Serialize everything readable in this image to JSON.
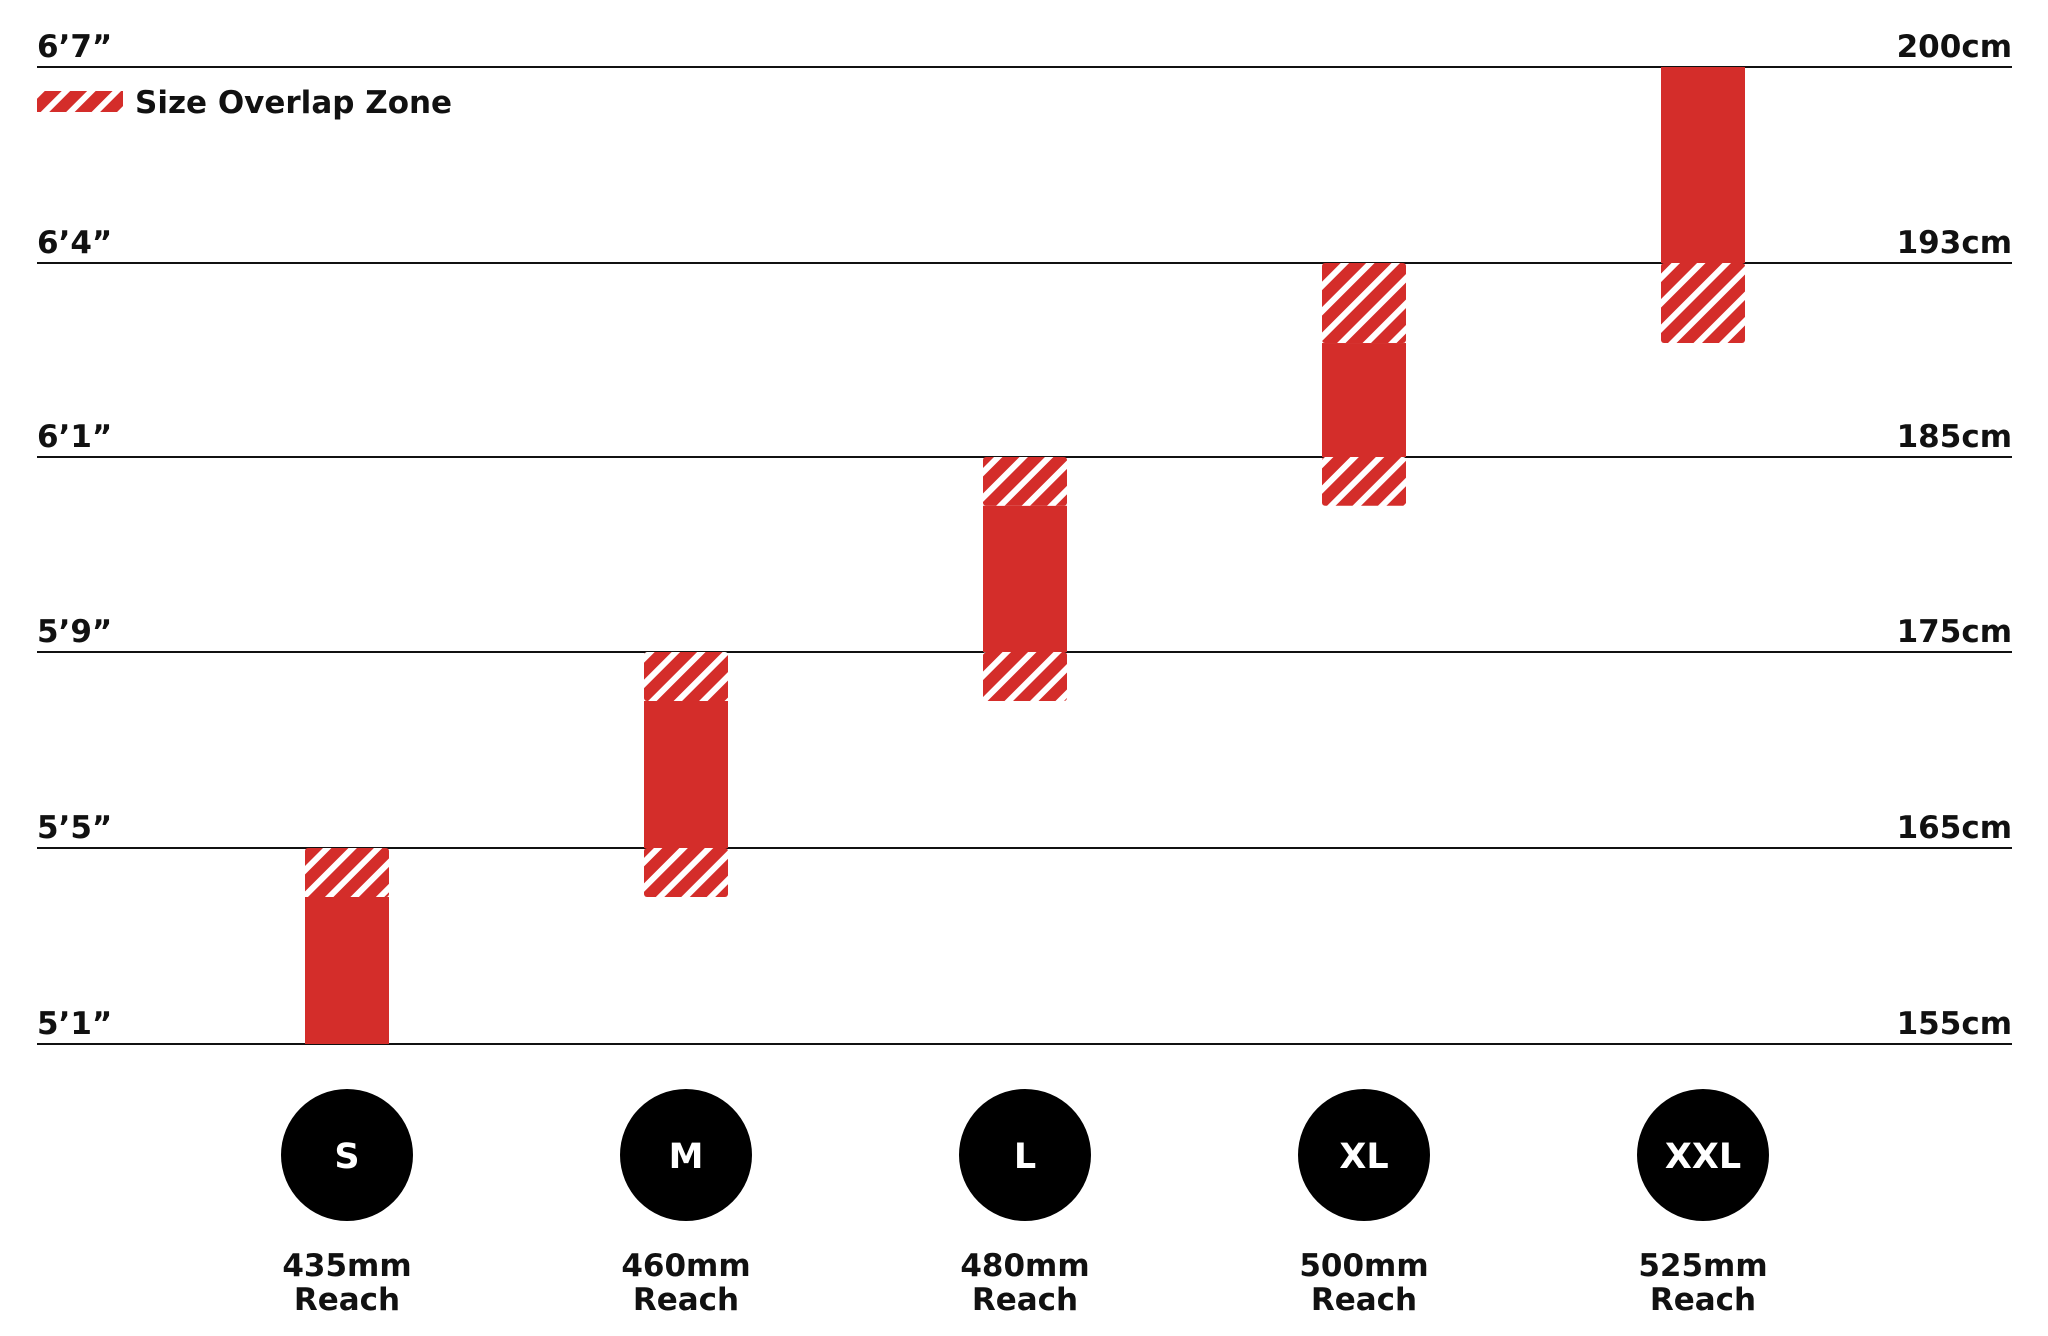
{
  "chart_data": {
    "type": "range-bar",
    "title": "",
    "ylabel_left": "",
    "ylabel_right": "",
    "y_ticks": [
      {
        "cm": 155,
        "label_left": "5’1”",
        "label_right": "155cm"
      },
      {
        "cm": 165,
        "label_left": "5’5”",
        "label_right": "165cm"
      },
      {
        "cm": 175,
        "label_left": "5’9”",
        "label_right": "175cm"
      },
      {
        "cm": 185,
        "label_left": "6’1”",
        "label_right": "185cm"
      },
      {
        "cm": 193,
        "label_left": "6’4”",
        "label_right": "193cm"
      },
      {
        "cm": 200,
        "label_left": "6’7”",
        "label_right": "200cm"
      }
    ],
    "legend": {
      "label": "Size Overlap Zone",
      "position": "top-left"
    },
    "colors": {
      "bar": "#d42d2a",
      "stripe": "#ffffff",
      "grid": "#111111",
      "badge": "#000000"
    },
    "sizes": [
      {
        "size": "S",
        "reach_value": "435mm",
        "reach_word": "Reach",
        "solid": [
          155,
          162.5
        ],
        "overlap": [
          [
            162.5,
            165
          ]
        ]
      },
      {
        "size": "M",
        "reach_value": "460mm",
        "reach_word": "Reach",
        "solid": [
          165,
          172.5
        ],
        "overlap": [
          [
            162.5,
            165
          ],
          [
            172.5,
            175
          ]
        ]
      },
      {
        "size": "L",
        "reach_value": "480mm",
        "reach_word": "Reach",
        "solid": [
          175,
          182.5
        ],
        "overlap": [
          [
            172.5,
            175
          ],
          [
            182.5,
            185
          ]
        ]
      },
      {
        "size": "XL",
        "reach_value": "500mm",
        "reach_word": "Reach",
        "solid": [
          185,
          189.7
        ],
        "overlap": [
          [
            182.5,
            185
          ],
          [
            189.7,
            193
          ]
        ]
      },
      {
        "size": "XXL",
        "reach_value": "525mm",
        "reach_word": "Reach",
        "solid": [
          193,
          200
        ],
        "overlap": [
          [
            189.7,
            193
          ]
        ]
      }
    ]
  }
}
